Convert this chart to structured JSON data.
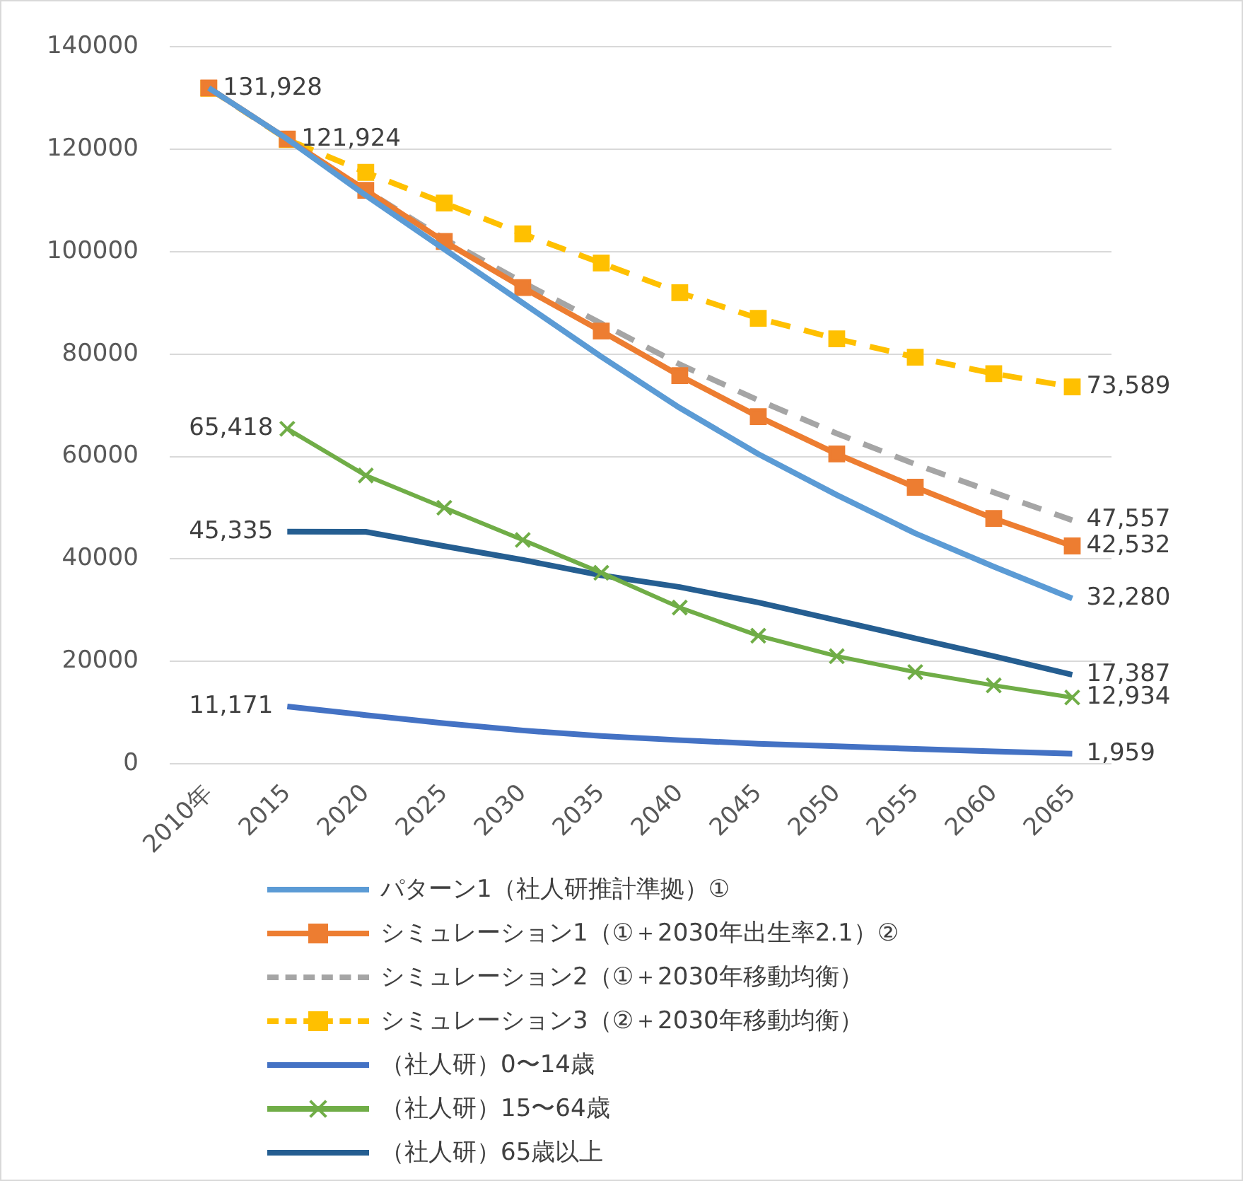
{
  "chart_data": {
    "type": "line",
    "categories": [
      "2010年",
      "2015",
      "2020",
      "2025",
      "2030",
      "2035",
      "2040",
      "2045",
      "2050",
      "2055",
      "2060",
      "2065"
    ],
    "ylim": [
      0,
      140000
    ],
    "yticks": [
      0,
      20000,
      40000,
      60000,
      80000,
      100000,
      120000,
      140000
    ],
    "grid": "y",
    "legend": "bottom",
    "series": [
      {
        "name": "パターン1（社人研推計準拠）①",
        "color": "#5b9bd5",
        "marker": "none",
        "line_style": "solid",
        "values": [
          132000,
          122000,
          111000,
          100500,
          90000,
          79500,
          69500,
          60500,
          52500,
          45000,
          38500,
          32280
        ],
        "value_labels": [
          null,
          null,
          null,
          null,
          null,
          null,
          null,
          null,
          null,
          null,
          null,
          "32,280"
        ]
      },
      {
        "name": "シミュレーション1（①＋2030年出生率2.1）②",
        "color": "#ed7d31",
        "marker": "square",
        "line_style": "solid",
        "values": [
          132000,
          122000,
          112000,
          102000,
          93000,
          84500,
          75800,
          67800,
          60500,
          54000,
          47900,
          42532
        ],
        "value_labels": [
          null,
          null,
          null,
          null,
          null,
          null,
          null,
          null,
          null,
          null,
          null,
          "42,532"
        ]
      },
      {
        "name": "シミュレーション2（①＋2030年移動均衡）",
        "color": "#a5a5a5",
        "marker": "none",
        "line_style": "dashed",
        "values": [
          132000,
          122000,
          112000,
          102500,
          94000,
          86000,
          78000,
          71000,
          64500,
          58500,
          53000,
          47557
        ],
        "value_labels": [
          null,
          null,
          null,
          null,
          null,
          null,
          null,
          null,
          null,
          null,
          null,
          "47,557"
        ]
      },
      {
        "name": "シミュレーション3（②＋2030年移動均衡）",
        "color": "#ffc000",
        "marker": "square",
        "line_style": "dashed",
        "values": [
          131928,
          121924,
          115500,
          109500,
          103500,
          97800,
          92000,
          87000,
          83000,
          79400,
          76200,
          73589
        ],
        "value_labels": [
          "131,928",
          "121,924",
          null,
          null,
          null,
          null,
          null,
          null,
          null,
          null,
          null,
          "73,589"
        ]
      },
      {
        "name": "（社人研）0〜14歳",
        "color": "#4472c4",
        "marker": "none",
        "line_style": "solid",
        "values": [
          null,
          11171,
          9500,
          7900,
          6500,
          5400,
          4600,
          3900,
          3400,
          2900,
          2400,
          1959
        ],
        "value_labels": [
          null,
          "11,171",
          null,
          null,
          null,
          null,
          null,
          null,
          null,
          null,
          null,
          "1,959"
        ]
      },
      {
        "name": "（社人研）15〜64歳",
        "color": "#70ad47",
        "marker": "cross",
        "line_style": "solid",
        "values": [
          null,
          65418,
          56300,
          50000,
          43700,
          37300,
          30500,
          25000,
          21000,
          17900,
          15300,
          12934
        ],
        "value_labels": [
          null,
          "65,418",
          null,
          null,
          null,
          null,
          null,
          null,
          null,
          null,
          null,
          "12,934"
        ]
      },
      {
        "name": "（社人研）65歳以上",
        "color": "#255e91",
        "marker": "none",
        "line_style": "solid",
        "values": [
          null,
          45335,
          45300,
          42500,
          39800,
          36800,
          34500,
          31500,
          28000,
          24500,
          21000,
          17387
        ],
        "value_labels": [
          null,
          "45,335",
          null,
          null,
          null,
          null,
          null,
          null,
          null,
          null,
          null,
          "17,387"
        ]
      }
    ]
  }
}
